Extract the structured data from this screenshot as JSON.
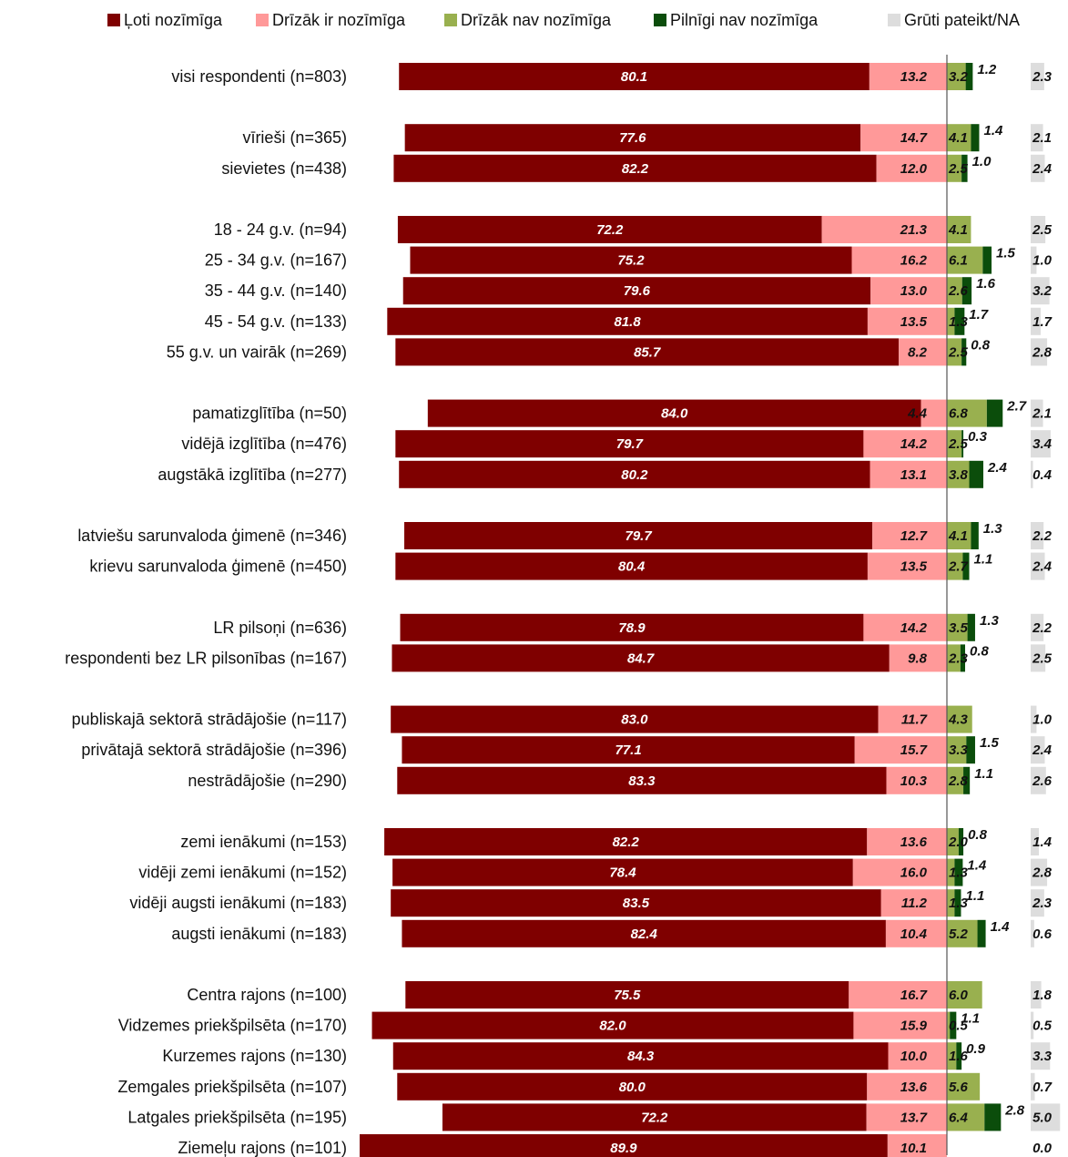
{
  "chart_data": {
    "type": "bar",
    "orientation": "horizontal",
    "stacked": true,
    "legend_position": "top",
    "grid": false,
    "categories": [
      "visi respondenti (n=803)",
      "",
      "vīrieši (n=365)",
      "sievietes (n=438)",
      "",
      "18 - 24 g.v. (n=94)",
      "25 - 34 g.v. (n=167)",
      "35 - 44 g.v. (n=140)",
      "45 - 54 g.v. (n=133)",
      "55 g.v. un vairāk (n=269)",
      "",
      "pamatizglītība (n=50)",
      "vidējā izglītība (n=476)",
      "augstākā izglītība (n=277)",
      "",
      "latviešu sarunvaloda ģimenē (n=346)",
      "krievu sarunvaloda ģimenē (n=450)",
      "",
      "LR pilsoņi (n=636)",
      "respondenti bez LR pilsonības (n=167)",
      "",
      "publiskajā sektorā strādājošie (n=117)",
      "privātajā sektorā strādājošie (n=396)",
      "nestrādājošie (n=290)",
      "",
      "zemi ienākumi (n=153)",
      "vidēji zemi ienākumi (n=152)",
      "vidēji augsti ienākumi (n=183)",
      "augsti ienākumi (n=183)",
      "",
      "Centra rajons (n=100)",
      "Vidzemes priekšpilsēta (n=170)",
      "Kurzemes rajons (n=130)",
      "Zemgales priekšpilsēta (n=107)",
      "Latgales priekšpilsēta (n=195)",
      "Ziemeļu rajons (n=101)"
    ],
    "series": [
      {
        "name": "Ļoti nozīmīga",
        "color": "#7f0000",
        "values": [
          80.1,
          null,
          77.6,
          82.2,
          null,
          72.2,
          75.2,
          79.6,
          81.8,
          85.7,
          null,
          84.0,
          79.7,
          80.2,
          null,
          79.7,
          80.4,
          null,
          78.9,
          84.7,
          null,
          83.0,
          77.1,
          83.3,
          null,
          82.2,
          78.4,
          83.5,
          82.4,
          null,
          75.5,
          82.0,
          84.3,
          80.0,
          72.2,
          89.9
        ]
      },
      {
        "name": "Drīzāk ir nozīmīga",
        "color": "#ff9999",
        "values": [
          13.2,
          null,
          14.7,
          12.0,
          null,
          21.3,
          16.2,
          13.0,
          13.5,
          8.2,
          null,
          4.4,
          14.2,
          13.1,
          null,
          12.7,
          13.5,
          null,
          14.2,
          9.8,
          null,
          11.7,
          15.7,
          10.3,
          null,
          13.6,
          16.0,
          11.2,
          10.4,
          null,
          16.7,
          15.9,
          10.0,
          13.6,
          13.7,
          10.1
        ]
      },
      {
        "name": "Drīzāk nav nozīmīga",
        "color": "#99b04f",
        "values": [
          3.2,
          null,
          4.1,
          2.5,
          null,
          4.1,
          6.1,
          2.6,
          1.3,
          2.5,
          null,
          6.8,
          2.5,
          3.8,
          null,
          4.1,
          2.7,
          null,
          3.5,
          2.3,
          null,
          4.3,
          3.3,
          2.8,
          null,
          2.0,
          1.3,
          1.3,
          5.2,
          null,
          6.0,
          0.5,
          1.6,
          5.6,
          6.4,
          0.0
        ]
      },
      {
        "name": "Pilnīgi nav nozīmīga",
        "color": "#0b4d0b",
        "values": [
          1.2,
          null,
          1.4,
          1.0,
          null,
          0.0,
          1.5,
          1.6,
          1.7,
          0.8,
          null,
          2.7,
          0.3,
          2.4,
          null,
          1.3,
          1.1,
          null,
          1.3,
          0.8,
          null,
          0.0,
          1.5,
          1.1,
          null,
          0.8,
          1.4,
          1.1,
          1.4,
          null,
          0.0,
          1.1,
          0.9,
          0.0,
          2.8,
          0.0
        ]
      },
      {
        "name": "Grūti pateikt/NA",
        "color": "#dddddd",
        "values": [
          2.3,
          null,
          2.1,
          2.4,
          null,
          2.5,
          1.0,
          3.2,
          1.7,
          2.8,
          null,
          2.1,
          3.4,
          0.4,
          null,
          2.2,
          2.4,
          null,
          2.2,
          2.5,
          null,
          1.0,
          2.4,
          2.6,
          null,
          1.4,
          2.8,
          2.3,
          0.6,
          null,
          1.8,
          0.5,
          3.3,
          0.7,
          5.0,
          0.0
        ]
      }
    ],
    "value_labels": [
      [
        "80.1",
        "13.2",
        "3.2",
        "1.2",
        "2.3"
      ],
      null,
      [
        "77.6",
        "14.7",
        "4.1",
        "1.4",
        "2.1"
      ],
      [
        "82.2",
        "12.0",
        "2.5",
        "1.0",
        "2.4"
      ],
      null,
      [
        "72.2",
        "21.3",
        "4.1",
        "",
        "2.5"
      ],
      [
        "75.2",
        "16.2",
        "6.1",
        "1.5",
        "1.0"
      ],
      [
        "79.6",
        "13.0",
        "2.6",
        "1.6",
        "3.2"
      ],
      [
        "81.8",
        "13.5",
        "1.3",
        "1.7",
        "1.7"
      ],
      [
        "85.7",
        "8.2",
        "2.5",
        "0.8",
        "2.8"
      ],
      null,
      [
        "84.0",
        "4.4",
        "6.8",
        "2.7",
        "2.1"
      ],
      [
        "79.7",
        "14.2",
        "2.5",
        "0.3",
        "3.4"
      ],
      [
        "80.2",
        "13.1",
        "3.8",
        "2.4",
        "0.4"
      ],
      null,
      [
        "79.7",
        "12.7",
        "4.1",
        "1.3",
        "2.2"
      ],
      [
        "80.4",
        "13.5",
        "2.7",
        "1.1",
        "2.4"
      ],
      null,
      [
        "78.9",
        "14.2",
        "3.5",
        "1.3",
        "2.2"
      ],
      [
        "84.7",
        "9.8",
        "2.3",
        "0.8",
        "2.5"
      ],
      null,
      [
        "83.0",
        "11.7",
        "4.3",
        "",
        "1.0"
      ],
      [
        "77.1",
        "15.7",
        "3.3",
        "1.5",
        "2.4"
      ],
      [
        "83.3",
        "10.3",
        "2.8",
        "1.1",
        "2.6"
      ],
      null,
      [
        "82.2",
        "13.6",
        "2.0",
        "0.8",
        "1.4"
      ],
      [
        "78.4",
        "16.0",
        "1.3",
        "1.4",
        "2.8"
      ],
      [
        "83.5",
        "11.2",
        "1.3",
        "1.1",
        "2.3"
      ],
      [
        "82.4",
        "10.4",
        "5.2",
        "1.4",
        "0.6"
      ],
      null,
      [
        "75.5",
        "16.7",
        "6.0",
        "",
        "1.8"
      ],
      [
        "82.0",
        "15.9",
        "0.5",
        "1.1",
        "0.5"
      ],
      [
        "84.3",
        "10.0",
        "1.6",
        "0.9",
        "3.3"
      ],
      [
        "80.0",
        "13.6",
        "5.6",
        "",
        "0.7"
      ],
      [
        "72.2",
        "13.7",
        "6.4",
        "2.8",
        "5.0"
      ],
      [
        "89.9",
        "10.1",
        "",
        "",
        "0.0"
      ]
    ]
  }
}
